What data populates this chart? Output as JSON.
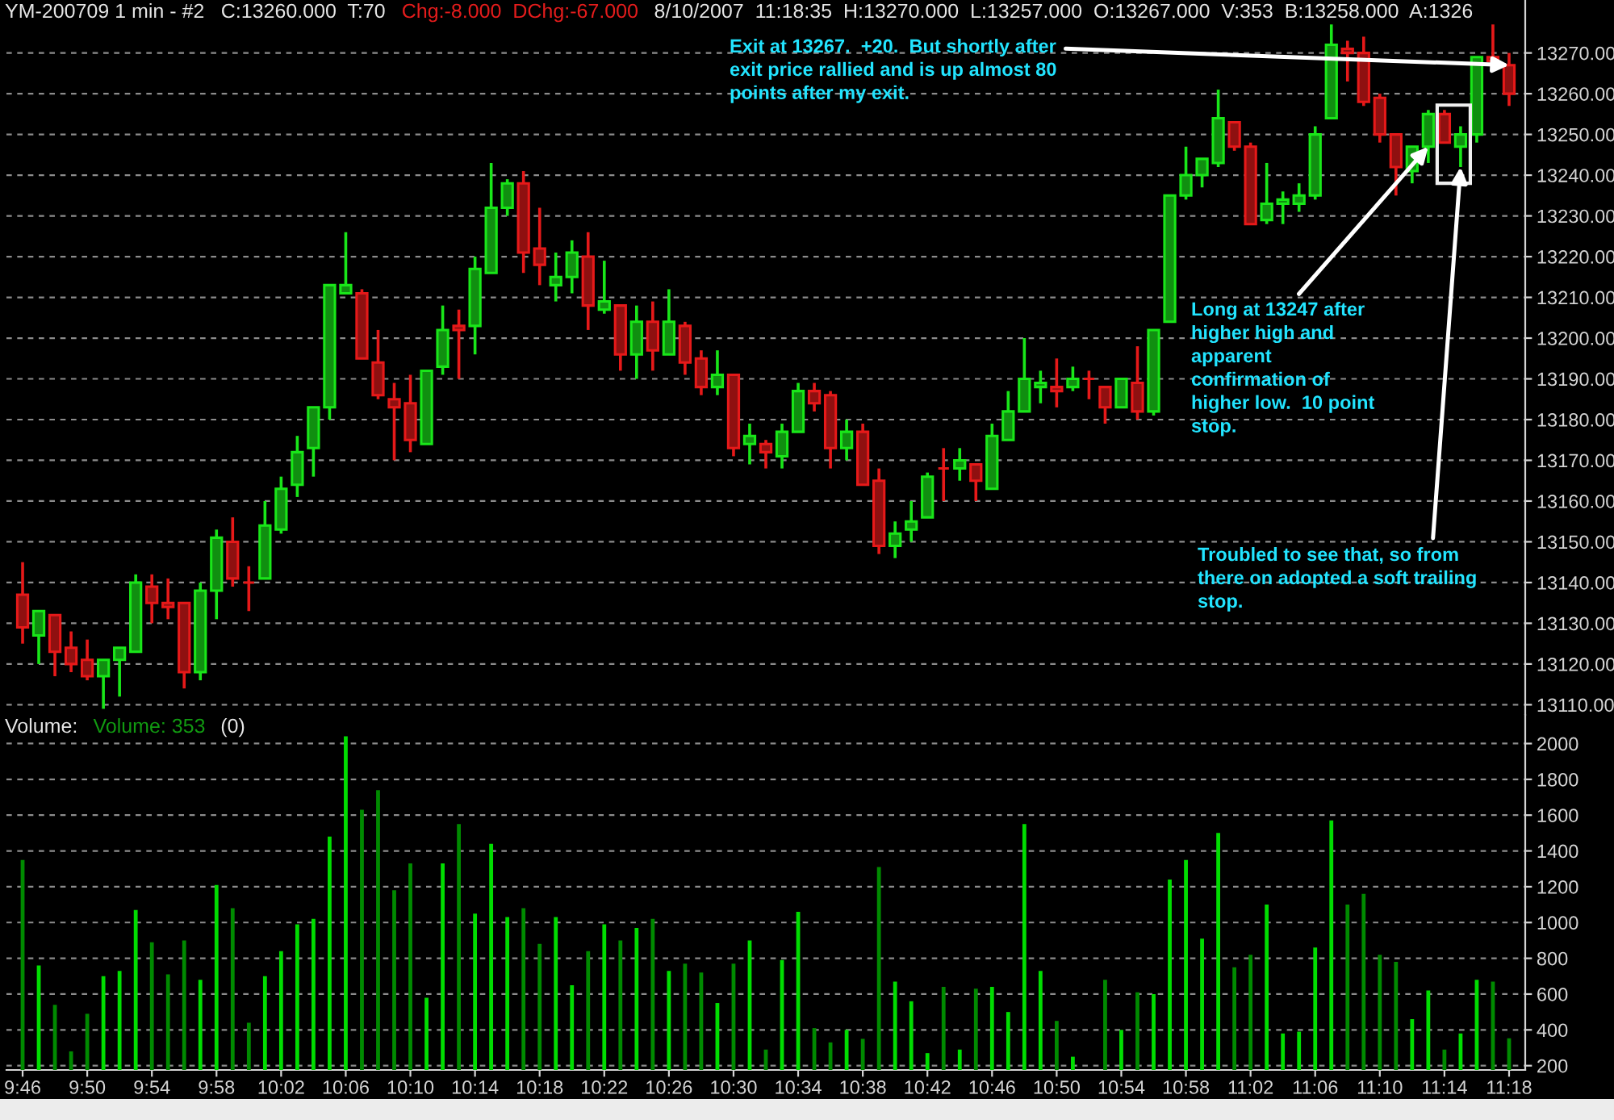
{
  "chart_data": [
    {
      "type": "candlestick",
      "title": "YM-200709 1 min - #2",
      "x": [
        "2007-08-10T09:46",
        "2007-08-10T09:47",
        "2007-08-10T09:48",
        "2007-08-10T09:49",
        "2007-08-10T09:50",
        "2007-08-10T09:51",
        "2007-08-10T09:52",
        "2007-08-10T09:53",
        "2007-08-10T09:54",
        "2007-08-10T09:55",
        "2007-08-10T09:56",
        "2007-08-10T09:57",
        "2007-08-10T09:58",
        "2007-08-10T09:59",
        "2007-08-10T10:00",
        "2007-08-10T10:01",
        "2007-08-10T10:02",
        "2007-08-10T10:03",
        "2007-08-10T10:04",
        "2007-08-10T10:05",
        "2007-08-10T10:06",
        "2007-08-10T10:07",
        "2007-08-10T10:08",
        "2007-08-10T10:09",
        "2007-08-10T10:10",
        "2007-08-10T10:11",
        "2007-08-10T10:12",
        "2007-08-10T10:13",
        "2007-08-10T10:14",
        "2007-08-10T10:15",
        "2007-08-10T10:16",
        "2007-08-10T10:17",
        "2007-08-10T10:18",
        "2007-08-10T10:19",
        "2007-08-10T10:20",
        "2007-08-10T10:21",
        "2007-08-10T10:22",
        "2007-08-10T10:23",
        "2007-08-10T10:24",
        "2007-08-10T10:25",
        "2007-08-10T10:26",
        "2007-08-10T10:27",
        "2007-08-10T10:28",
        "2007-08-10T10:29",
        "2007-08-10T10:30",
        "2007-08-10T10:31",
        "2007-08-10T10:32",
        "2007-08-10T10:33",
        "2007-08-10T10:34",
        "2007-08-10T10:35",
        "2007-08-10T10:36",
        "2007-08-10T10:37",
        "2007-08-10T10:38",
        "2007-08-10T10:39",
        "2007-08-10T10:40",
        "2007-08-10T10:41",
        "2007-08-10T10:42",
        "2007-08-10T10:43",
        "2007-08-10T10:44",
        "2007-08-10T10:45",
        "2007-08-10T10:46",
        "2007-08-10T10:47",
        "2007-08-10T10:48",
        "2007-08-10T10:49",
        "2007-08-10T10:50",
        "2007-08-10T10:51",
        "2007-08-10T10:52",
        "2007-08-10T10:53",
        "2007-08-10T10:54",
        "2007-08-10T10:55",
        "2007-08-10T10:56",
        "2007-08-10T10:57",
        "2007-08-10T10:58",
        "2007-08-10T10:59",
        "2007-08-10T11:00",
        "2007-08-10T11:01",
        "2007-08-10T11:02",
        "2007-08-10T11:03",
        "2007-08-10T11:04",
        "2007-08-10T11:05",
        "2007-08-10T11:06",
        "2007-08-10T11:07",
        "2007-08-10T11:08",
        "2007-08-10T11:09",
        "2007-08-10T11:10",
        "2007-08-10T11:11",
        "2007-08-10T11:12",
        "2007-08-10T11:13",
        "2007-08-10T11:14",
        "2007-08-10T11:15",
        "2007-08-10T11:16",
        "2007-08-10T11:17",
        "2007-08-10T11:18"
      ],
      "ohlc": [
        [
          13137,
          13145,
          13125,
          13129
        ],
        [
          13127,
          13133,
          13120,
          13133
        ],
        [
          13132,
          13132,
          13117,
          13123
        ],
        [
          13124,
          13128,
          13118,
          13120
        ],
        [
          13121,
          13126,
          13116,
          13117
        ],
        [
          13117,
          13121,
          13109,
          13121
        ],
        [
          13121,
          13124,
          13112,
          13124
        ],
        [
          13123,
          13142,
          13123,
          13140
        ],
        [
          13139,
          13142,
          13130,
          13135
        ],
        [
          13135,
          13141,
          13131,
          13134
        ],
        [
          13135,
          13135,
          13114,
          13118
        ],
        [
          13118,
          13140,
          13116,
          13138
        ],
        [
          13138,
          13153,
          13131,
          13151
        ],
        [
          13150,
          13156,
          13139,
          13141
        ],
        [
          13140,
          13144,
          13133,
          13140
        ],
        [
          13141,
          13160,
          13141,
          13154
        ],
        [
          13153,
          13166,
          13152,
          13163
        ],
        [
          13164,
          13176,
          13161,
          13172
        ],
        [
          13173,
          13183,
          13166,
          13183
        ],
        [
          13183,
          13213,
          13180,
          13213
        ],
        [
          13211,
          13226,
          13211,
          13213
        ],
        [
          13211,
          13212,
          13195,
          13195
        ],
        [
          13194,
          13202,
          13185,
          13186
        ],
        [
          13185,
          13189,
          13170,
          13183
        ],
        [
          13184,
          13191,
          13172,
          13175
        ],
        [
          13174,
          13192,
          13174,
          13192
        ],
        [
          13193,
          13208,
          13191,
          13202
        ],
        [
          13203,
          13207,
          13190,
          13202
        ],
        [
          13203,
          13220,
          13196,
          13217
        ],
        [
          13216,
          13243,
          13216,
          13232
        ],
        [
          13232,
          13239,
          13230,
          13238
        ],
        [
          13238,
          13241,
          13216,
          13221
        ],
        [
          13222,
          13232,
          13213,
          13218
        ],
        [
          13213,
          13221,
          13209,
          13215
        ],
        [
          13215,
          13224,
          13211,
          13221
        ],
        [
          13220,
          13226,
          13202,
          13208
        ],
        [
          13207,
          13219,
          13206,
          13209
        ],
        [
          13208,
          13208,
          13192,
          13196
        ],
        [
          13196,
          13208,
          13190,
          13204
        ],
        [
          13204,
          13209,
          13192,
          13197
        ],
        [
          13196,
          13212,
          13196,
          13204
        ],
        [
          13203,
          13204,
          13191,
          13194
        ],
        [
          13195,
          13197,
          13186,
          13188
        ],
        [
          13188,
          13197,
          13186,
          13191
        ],
        [
          13191,
          13191,
          13171,
          13173
        ],
        [
          13174,
          13179,
          13169,
          13176
        ],
        [
          13174,
          13175,
          13168,
          13172
        ],
        [
          13171,
          13179,
          13168,
          13177
        ],
        [
          13177,
          13189,
          13177,
          13187
        ],
        [
          13187,
          13189,
          13182,
          13184
        ],
        [
          13186,
          13187,
          13168,
          13173
        ],
        [
          13173,
          13180,
          13170,
          13177
        ],
        [
          13177,
          13179,
          13164,
          13164
        ],
        [
          13165,
          13168,
          13147,
          13149
        ],
        [
          13149,
          13155,
          13146,
          13152
        ],
        [
          13153,
          13160,
          13150,
          13155
        ],
        [
          13156,
          13167,
          13156,
          13166
        ],
        [
          13168,
          13173,
          13160,
          13168
        ],
        [
          13168,
          13173,
          13165,
          13170
        ],
        [
          13169,
          13169,
          13160,
          13165
        ],
        [
          13163,
          13179,
          13163,
          13176
        ],
        [
          13175,
          13187,
          13175,
          13182
        ],
        [
          13182,
          13200,
          13182,
          13190
        ],
        [
          13188,
          13192,
          13184,
          13189
        ],
        [
          13188,
          13195,
          13183,
          13187
        ],
        [
          13188,
          13193,
          13187,
          13190
        ],
        [
          13190,
          13192,
          13185,
          13190
        ],
        [
          13188,
          13188,
          13179,
          13183
        ],
        [
          13183,
          13190,
          13183,
          13190
        ],
        [
          13189,
          13198,
          13180,
          13182
        ],
        [
          13182,
          13202,
          13181,
          13202
        ],
        [
          13204,
          13235,
          13204,
          13235
        ],
        [
          13235,
          13247,
          13234,
          13240
        ],
        [
          13240,
          13244,
          13237,
          13244
        ],
        [
          13243,
          13261,
          13242,
          13254
        ],
        [
          13253,
          13253,
          13246,
          13247
        ],
        [
          13247,
          13248,
          13228,
          13228
        ],
        [
          13229,
          13243,
          13228,
          13233
        ],
        [
          13233,
          13236,
          13228,
          13234
        ],
        [
          13233,
          13238,
          13231,
          13235
        ],
        [
          13235,
          13252,
          13234,
          13250
        ],
        [
          13254,
          13277,
          13254,
          13272
        ],
        [
          13271,
          13273,
          13263,
          13270
        ],
        [
          13270,
          13274,
          13257,
          13258
        ],
        [
          13259,
          13260,
          13248,
          13250
        ],
        [
          13250,
          13250,
          13235,
          13242
        ],
        [
          13241,
          13247,
          13238,
          13247
        ],
        [
          13247,
          13256,
          13243,
          13255
        ],
        [
          13255,
          13256,
          13248,
          13248
        ],
        [
          13247,
          13252,
          13242,
          13250
        ],
        [
          13250,
          13269,
          13248,
          13269
        ],
        [
          13269,
          13277,
          13268,
          13268
        ],
        [
          13267,
          13270,
          13257,
          13260
        ]
      ],
      "colors": [
        "#e61919",
        "#19e619",
        "#e61919",
        "#e61919",
        "#e61919",
        "#19e619",
        "#19e619",
        "#19e619",
        "#e61919",
        "#e61919",
        "#e61919",
        "#19e619",
        "#19e619",
        "#e61919",
        "#e61919",
        "#19e619",
        "#19e619",
        "#19e619",
        "#19e619",
        "#19e619",
        "#19e619",
        "#e61919",
        "#e61919",
        "#e61919",
        "#e61919",
        "#19e619",
        "#19e619",
        "#e61919",
        "#19e619",
        "#19e619",
        "#19e619",
        "#e61919",
        "#e61919",
        "#19e619",
        "#19e619",
        "#e61919",
        "#19e619",
        "#e61919",
        "#19e619",
        "#e61919",
        "#19e619",
        "#e61919",
        "#e61919",
        "#19e619",
        "#e61919",
        "#19e619",
        "#e61919",
        "#19e619",
        "#19e619",
        "#e61919",
        "#e61919",
        "#19e619",
        "#e61919",
        "#e61919",
        "#19e619",
        "#19e619",
        "#19e619",
        "#e61919",
        "#19e619",
        "#e61919",
        "#19e619",
        "#19e619",
        "#19e619",
        "#19e619",
        "#e61919",
        "#19e619",
        "#e61919",
        "#e61919",
        "#19e619",
        "#e61919",
        "#19e619",
        "#19e619",
        "#19e619",
        "#19e619",
        "#19e619",
        "#e61919",
        "#e61919",
        "#19e619",
        "#19e619",
        "#19e619",
        "#19e619",
        "#19e619",
        "#e61919",
        "#e61919",
        "#e61919",
        "#e61919",
        "#19e619",
        "#19e619",
        "#e61919",
        "#19e619",
        "#19e619",
        "#e61919",
        "#e61919"
      ],
      "xlim": [
        "2007-08-10T09:45",
        "2007-08-10T11:19"
      ],
      "ylim": [
        13107.5,
        13283
      ],
      "yticks": [
        {
          "value": 13110,
          "label": "13110.00"
        },
        {
          "value": 13120,
          "label": "13120.00"
        },
        {
          "value": 13130,
          "label": "13130.00"
        },
        {
          "value": 13140,
          "label": "13140.00"
        },
        {
          "value": 13150,
          "label": "13150.00"
        },
        {
          "value": 13160,
          "label": "13160.00"
        },
        {
          "value": 13170,
          "label": "13170.00"
        },
        {
          "value": 13180,
          "label": "13180.00"
        },
        {
          "value": 13190,
          "label": "13190.00"
        },
        {
          "value": 13200,
          "label": "13200.00"
        },
        {
          "value": 13210,
          "label": "13210.00"
        },
        {
          "value": 13220,
          "label": "13220.00"
        },
        {
          "value": 13230,
          "label": "13230.00"
        },
        {
          "value": 13240,
          "label": "13240.00"
        },
        {
          "value": 13250,
          "label": "13250.00"
        },
        {
          "value": 13260,
          "label": "13260.00"
        },
        {
          "value": 13270,
          "label": "13270.00"
        }
      ],
      "tick_labels": "y",
      "grid": "y",
      "annotations": [
        "C:13260.000  T:70",
        "Chg:-8.000  DChg:-67.000",
        "8/10/2007  11:18:35  H:13270.000  L:13257.000  O:13267.000  V:353  B:13258.000  A:1326",
        {
          "text": "Exit at 13267.  +20.  But shortly after\nexit price rallied and is up almost 80\npoints after my exit.",
          "x": "2007-08-10T11:18",
          "y": 13267
        },
        {
          "text": "Long at 13247 after\nhigher high and\napparent\nconfirmation of\nhigher low.  10 point\nstop.",
          "x": "2007-08-10T11:13",
          "y": 13247
        },
        {
          "text": "Troubled to see that, so from\nthere on adopted a soft trailing\nstop.",
          "x": "2007-08-10T11:15",
          "y": 13242
        }
      ]
    },
    {
      "type": "bar",
      "title": "Volume:",
      "x": [
        "2007-08-10T09:46",
        "2007-08-10T09:47",
        "2007-08-10T09:48",
        "2007-08-10T09:49",
        "2007-08-10T09:50",
        "2007-08-10T09:51",
        "2007-08-10T09:52",
        "2007-08-10T09:53",
        "2007-08-10T09:54",
        "2007-08-10T09:55",
        "2007-08-10T09:56",
        "2007-08-10T09:57",
        "2007-08-10T09:58",
        "2007-08-10T09:59",
        "2007-08-10T10:00",
        "2007-08-10T10:01",
        "2007-08-10T10:02",
        "2007-08-10T10:03",
        "2007-08-10T10:04",
        "2007-08-10T10:05",
        "2007-08-10T10:06",
        "2007-08-10T10:07",
        "2007-08-10T10:08",
        "2007-08-10T10:09",
        "2007-08-10T10:10",
        "2007-08-10T10:11",
        "2007-08-10T10:12",
        "2007-08-10T10:13",
        "2007-08-10T10:14",
        "2007-08-10T10:15",
        "2007-08-10T10:16",
        "2007-08-10T10:17",
        "2007-08-10T10:18",
        "2007-08-10T10:19",
        "2007-08-10T10:20",
        "2007-08-10T10:21",
        "2007-08-10T10:22",
        "2007-08-10T10:23",
        "2007-08-10T10:24",
        "2007-08-10T10:25",
        "2007-08-10T10:26",
        "2007-08-10T10:27",
        "2007-08-10T10:28",
        "2007-08-10T10:29",
        "2007-08-10T10:30",
        "2007-08-10T10:31",
        "2007-08-10T10:32",
        "2007-08-10T10:33",
        "2007-08-10T10:34",
        "2007-08-10T10:35",
        "2007-08-10T10:36",
        "2007-08-10T10:37",
        "2007-08-10T10:38",
        "2007-08-10T10:39",
        "2007-08-10T10:40",
        "2007-08-10T10:41",
        "2007-08-10T10:42",
        "2007-08-10T10:43",
        "2007-08-10T10:44",
        "2007-08-10T10:45",
        "2007-08-10T10:46",
        "2007-08-10T10:47",
        "2007-08-10T10:48",
        "2007-08-10T10:49",
        "2007-08-10T10:50",
        "2007-08-10T10:51",
        "2007-08-10T10:52",
        "2007-08-10T10:53",
        "2007-08-10T10:54",
        "2007-08-10T10:55",
        "2007-08-10T10:56",
        "2007-08-10T10:57",
        "2007-08-10T10:58",
        "2007-08-10T10:59",
        "2007-08-10T11:00",
        "2007-08-10T11:01",
        "2007-08-10T11:02",
        "2007-08-10T11:03",
        "2007-08-10T11:04",
        "2007-08-10T11:05",
        "2007-08-10T11:06",
        "2007-08-10T11:07",
        "2007-08-10T11:08",
        "2007-08-10T11:09",
        "2007-08-10T11:10",
        "2007-08-10T11:11",
        "2007-08-10T11:12",
        "2007-08-10T11:13",
        "2007-08-10T11:14",
        "2007-08-10T11:15",
        "2007-08-10T11:16",
        "2007-08-10T11:17",
        "2007-08-10T11:18"
      ],
      "values": [
        1350,
        760,
        540,
        280,
        490,
        700,
        730,
        1070,
        890,
        710,
        900,
        680,
        1210,
        1080,
        440,
        700,
        840,
        990,
        1020,
        1480,
        2040,
        1630,
        1740,
        1180,
        1330,
        580,
        1330,
        1550,
        1050,
        1440,
        1030,
        1080,
        880,
        1030,
        650,
        840,
        990,
        900,
        970,
        1020,
        730,
        770,
        720,
        550,
        770,
        900,
        290,
        790,
        1060,
        410,
        330,
        400,
        350,
        1310,
        670,
        560,
        270,
        640,
        290,
        630,
        640,
        500,
        1550,
        730,
        450,
        250,
        null,
        680,
        400,
        610,
        600,
        1240,
        1350,
        910,
        1500,
        750,
        820,
        1100,
        380,
        390,
        860,
        1570,
        1100,
        1160,
        820,
        780,
        460,
        620,
        290,
        380,
        680,
        670,
        353
      ],
      "colors": [
        "#008a00",
        "#00dd00",
        "#008a00",
        "#008a00",
        "#008a00",
        "#00dd00",
        "#00dd00",
        "#00dd00",
        "#008a00",
        "#008a00",
        "#008a00",
        "#00dd00",
        "#00dd00",
        "#008a00",
        "#008a00",
        "#00dd00",
        "#00dd00",
        "#00dd00",
        "#00dd00",
        "#00dd00",
        "#00dd00",
        "#008a00",
        "#008a00",
        "#008a00",
        "#008a00",
        "#00dd00",
        "#00dd00",
        "#008a00",
        "#00dd00",
        "#00dd00",
        "#00dd00",
        "#008a00",
        "#008a00",
        "#00dd00",
        "#00dd00",
        "#008a00",
        "#00dd00",
        "#008a00",
        "#00dd00",
        "#008a00",
        "#00dd00",
        "#008a00",
        "#008a00",
        "#00dd00",
        "#008a00",
        "#00dd00",
        "#008a00",
        "#00dd00",
        "#00dd00",
        "#008a00",
        "#008a00",
        "#00dd00",
        "#008a00",
        "#008a00",
        "#00dd00",
        "#00dd00",
        "#00dd00",
        "#008a00",
        "#00dd00",
        "#008a00",
        "#00dd00",
        "#00dd00",
        "#00dd00",
        "#00dd00",
        "#008a00",
        "#00dd00",
        "#008a00",
        "#008a00",
        "#00dd00",
        "#008a00",
        "#00dd00",
        "#00dd00",
        "#00dd00",
        "#00dd00",
        "#00dd00",
        "#008a00",
        "#008a00",
        "#00dd00",
        "#00dd00",
        "#00dd00",
        "#00dd00",
        "#00dd00",
        "#008a00",
        "#008a00",
        "#008a00",
        "#008a00",
        "#00dd00",
        "#00dd00",
        "#008a00",
        "#00dd00",
        "#00dd00",
        "#008a00",
        "#008a00"
      ],
      "xlim": [
        "2007-08-10T09:45",
        "2007-08-10T11:19"
      ],
      "xticks": [
        {
          "value": "2007-08-10T09:46",
          "label": "9:46"
        },
        {
          "value": "2007-08-10T09:50",
          "label": "9:50"
        },
        {
          "value": "2007-08-10T09:54",
          "label": "9:54"
        },
        {
          "value": "2007-08-10T09:58",
          "label": "9:58"
        },
        {
          "value": "2007-08-10T10:02",
          "label": "10:02"
        },
        {
          "value": "2007-08-10T10:06",
          "label": "10:06"
        },
        {
          "value": "2007-08-10T10:10",
          "label": "10:10"
        },
        {
          "value": "2007-08-10T10:14",
          "label": "10:14"
        },
        {
          "value": "2007-08-10T10:18",
          "label": "10:18"
        },
        {
          "value": "2007-08-10T10:22",
          "label": "10:22"
        },
        {
          "value": "2007-08-10T10:26",
          "label": "10:26"
        },
        {
          "value": "2007-08-10T10:30",
          "label": "10:30"
        },
        {
          "value": "2007-08-10T10:34",
          "label": "10:34"
        },
        {
          "value": "2007-08-10T10:38",
          "label": "10:38"
        },
        {
          "value": "2007-08-10T10:42",
          "label": "10:42"
        },
        {
          "value": "2007-08-10T10:46",
          "label": "10:46"
        },
        {
          "value": "2007-08-10T10:50",
          "label": "10:50"
        },
        {
          "value": "2007-08-10T10:54",
          "label": "10:54"
        },
        {
          "value": "2007-08-10T10:58",
          "label": "10:58"
        },
        {
          "value": "2007-08-10T11:02",
          "label": "11:02"
        },
        {
          "value": "2007-08-10T11:06",
          "label": "11:06"
        },
        {
          "value": "2007-08-10T11:10",
          "label": "11:10"
        },
        {
          "value": "2007-08-10T11:14",
          "label": "11:14"
        },
        {
          "value": "2007-08-10T11:18",
          "label": "11:18"
        }
      ],
      "ylim": [
        176,
        2160
      ],
      "yticks": [
        200,
        400,
        600,
        800,
        1000,
        1200,
        1400,
        1600,
        1800,
        2000
      ],
      "grid": "y",
      "annotations": [
        "Volume: 353",
        "(0)"
      ]
    }
  ]
}
